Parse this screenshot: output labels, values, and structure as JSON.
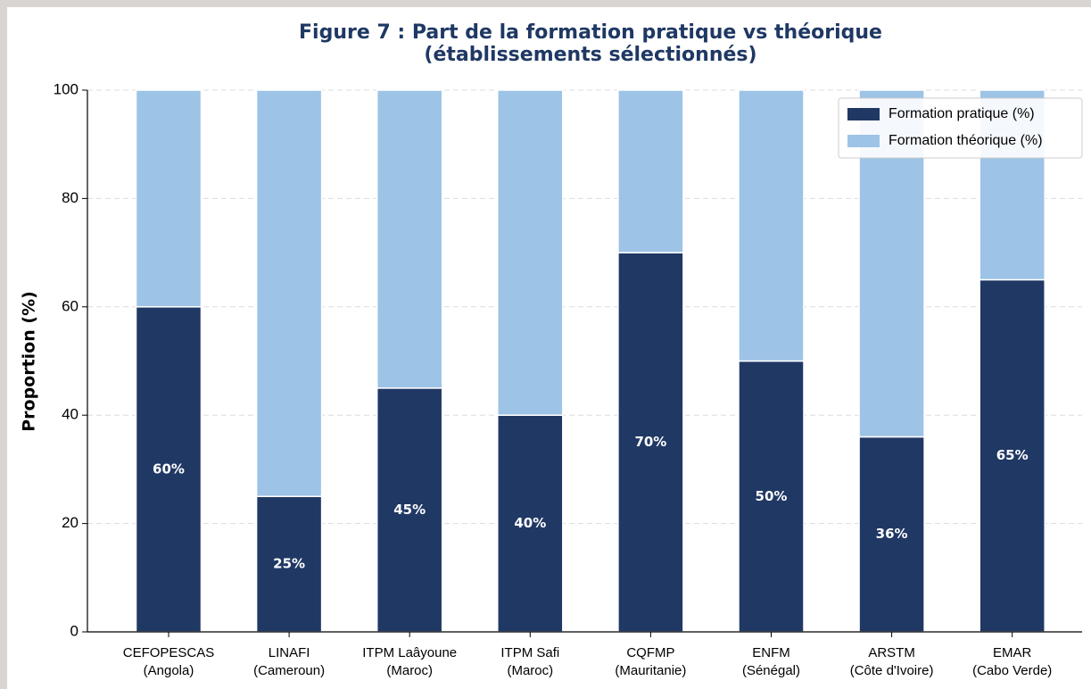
{
  "chart_data": {
    "type": "stacked_bar",
    "title": "Figure 7 : Part de la formation pratique vs théorique\n(établissements sélectionnés)",
    "ylabel": "Proportion (%)",
    "categories": [
      "CEFOPESCAS\n(Angola)",
      "LINAFI\n(Cameroun)",
      "ITPM Laâyoune\n(Maroc)",
      "ITPM Safi\n(Maroc)",
      "CQFMP\n(Mauritanie)",
      "ENFM\n(Sénégal)",
      "ARSTM\n(Côte d'Ivoire)",
      "EMAR\n(Cabo Verde)"
    ],
    "series": [
      {
        "name": "Formation pratique (%)",
        "color": "#203864",
        "values": [
          60,
          25,
          45,
          40,
          70,
          50,
          36,
          65
        ],
        "value_labels": [
          "60%",
          "25%",
          "45%",
          "40%",
          "70%",
          "50%",
          "36%",
          "65%"
        ]
      },
      {
        "name": "Formation théorique (%)",
        "color": "#9dc3e6",
        "values": [
          40,
          75,
          55,
          60,
          30,
          50,
          64,
          35
        ]
      }
    ],
    "ylim": [
      0,
      100
    ],
    "yticks": [
      0,
      20,
      40,
      60,
      80,
      100
    ],
    "grid": true,
    "legend": "upper right"
  }
}
